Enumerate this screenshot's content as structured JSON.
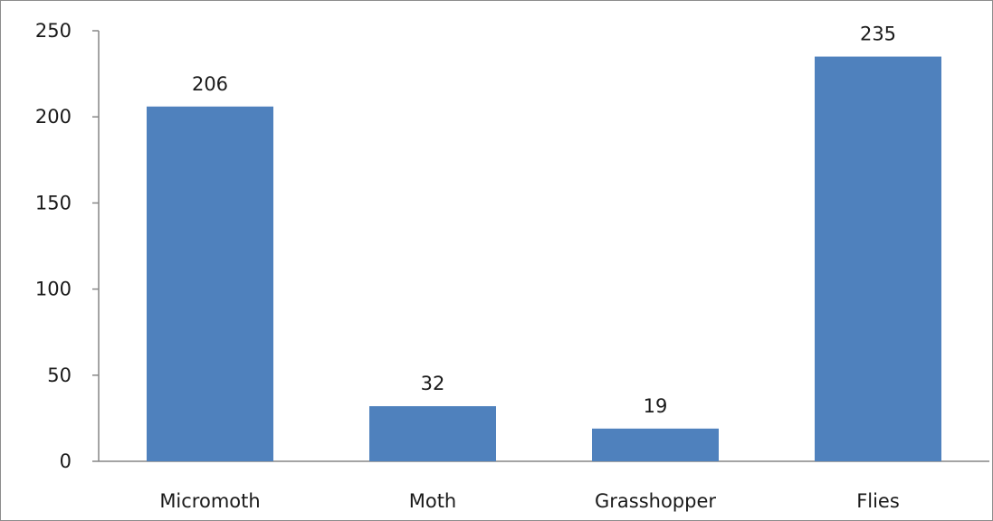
{
  "chart_data": {
    "type": "bar",
    "categories": [
      "Micromoth",
      "Moth",
      "Grasshopper",
      "Flies"
    ],
    "values": [
      206,
      32,
      19,
      235
    ],
    "data_labels": [
      "206",
      "32",
      "19",
      "235"
    ],
    "ylim": [
      0,
      250
    ],
    "yticks": [
      0,
      50,
      100,
      150,
      200,
      250
    ],
    "ytick_labels": [
      "0",
      "50",
      "100",
      "150",
      "200",
      "250"
    ],
    "title": "",
    "xlabel": "",
    "ylabel": "",
    "grid": false,
    "legend": "none",
    "bar_color": "#4f81bd",
    "axis_color": "#868686"
  }
}
